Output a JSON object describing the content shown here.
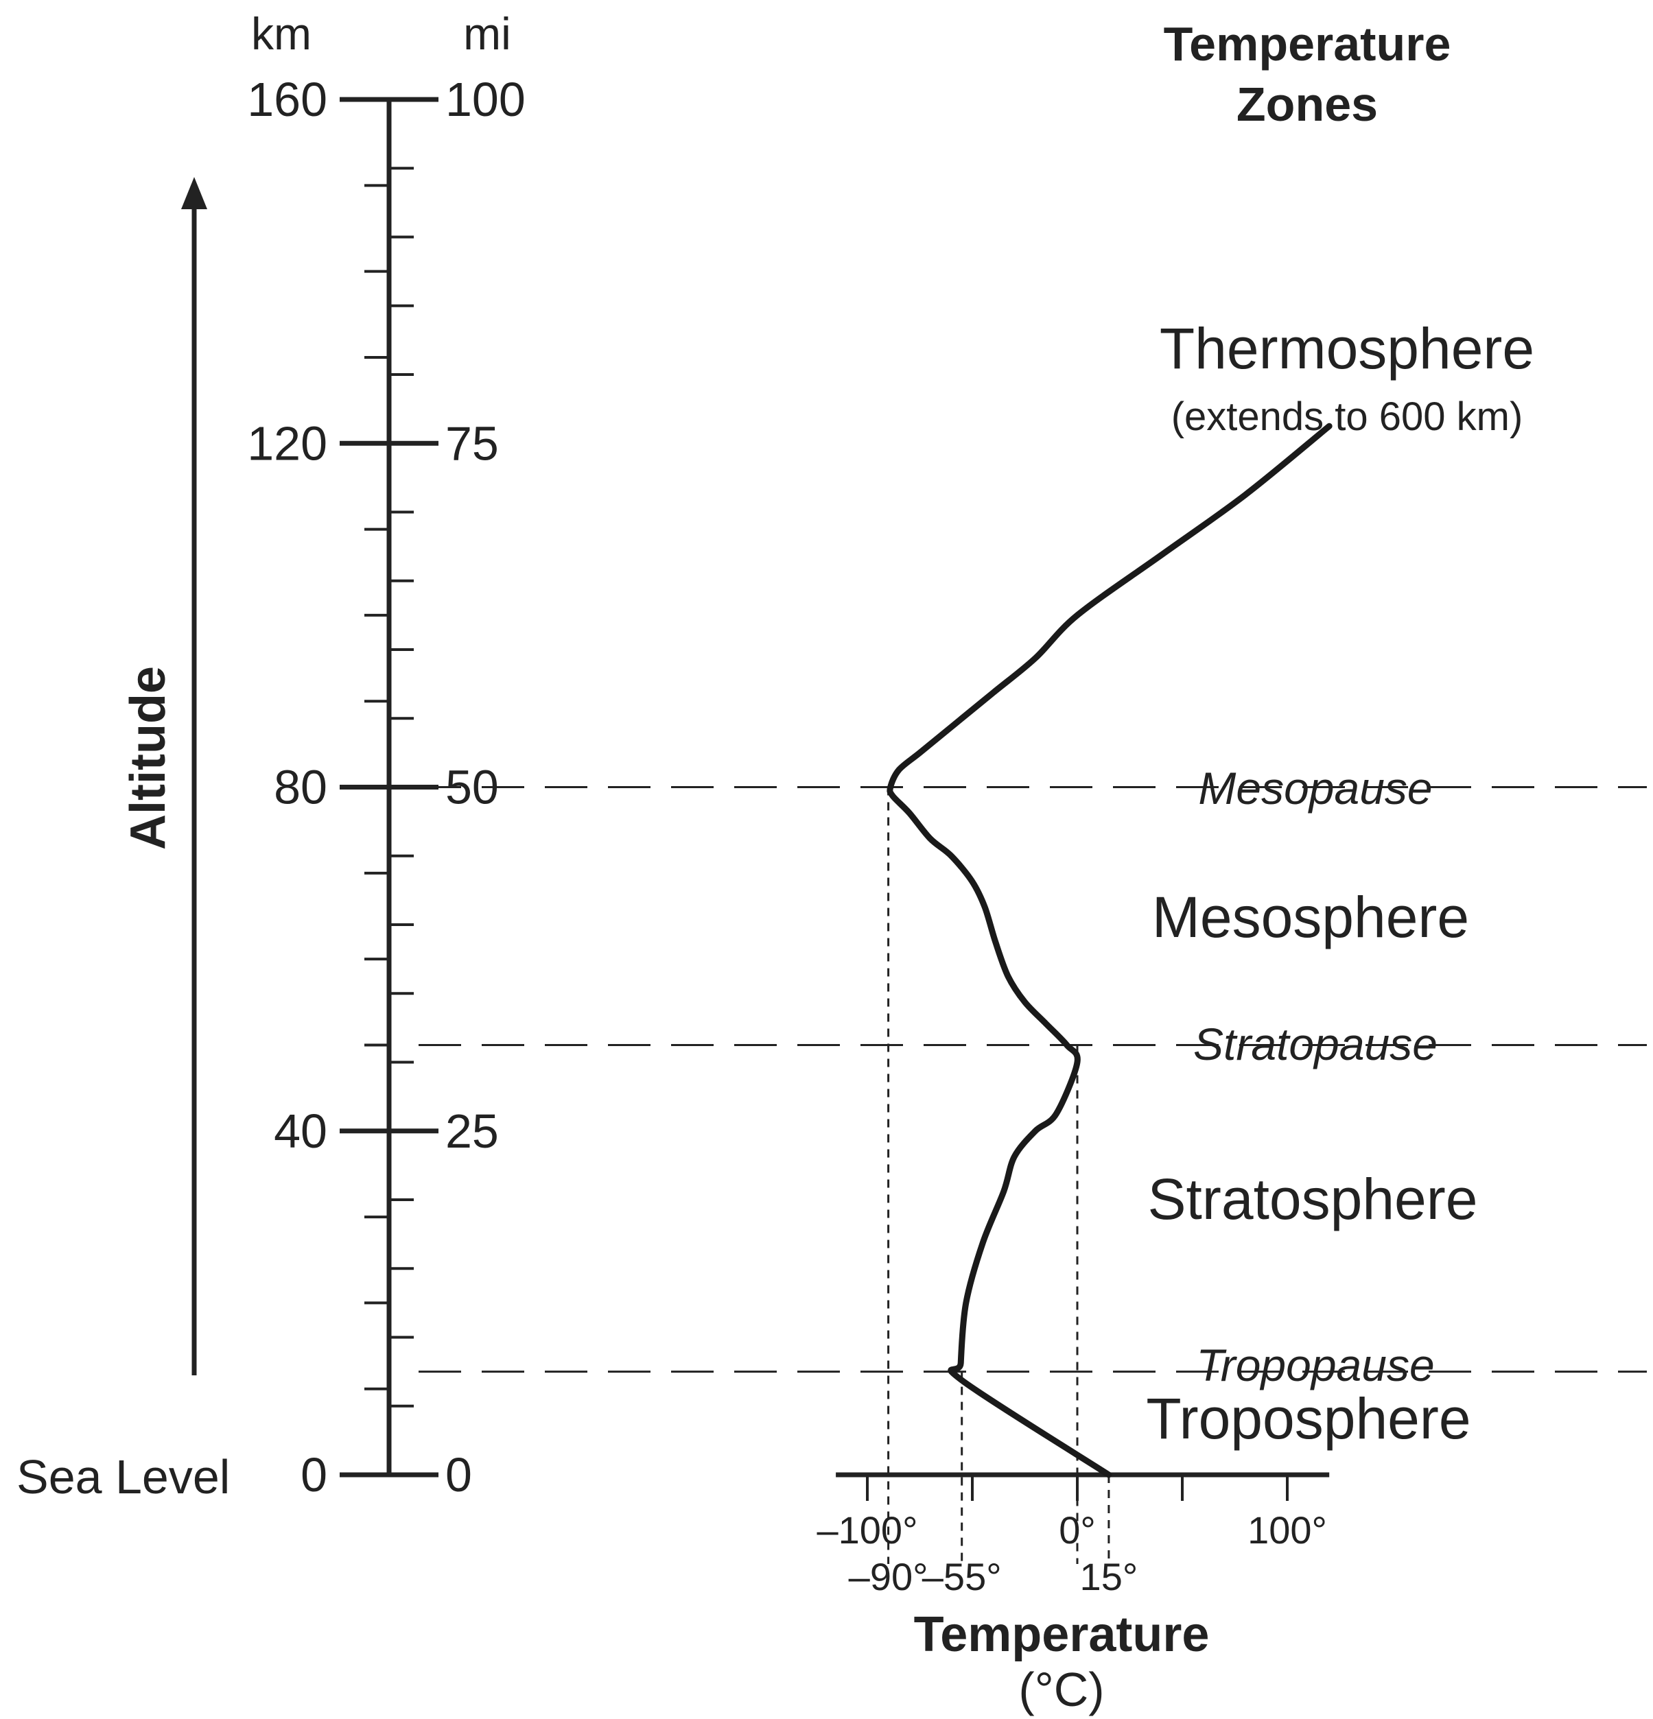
{
  "chart_data": {
    "type": "line",
    "title": "Temperature Zones",
    "title_lines": [
      "Temperature",
      "Zones"
    ],
    "xlabel": "Temperature",
    "xlabel_unit": "(°C)",
    "ylabel": "Altitude",
    "y_units": {
      "left": "km",
      "right": "mi"
    },
    "sea_level_label": "Sea Level",
    "xlim": [
      -115,
      120
    ],
    "ylim": [
      0,
      160
    ],
    "x_major_ticks": [
      -100,
      -50,
      0,
      50,
      100
    ],
    "x_tick_labels": [
      {
        "value": -100,
        "label": "–100°"
      },
      {
        "value": 0,
        "label": "0°"
      },
      {
        "value": 100,
        "label": "100°"
      }
    ],
    "x_marker_labels": [
      {
        "value": -90,
        "label": "–90°"
      },
      {
        "value": -55,
        "label": "–55°"
      },
      {
        "value": 15,
        "label": "15°"
      }
    ],
    "y_km_ticks": [
      {
        "value": 0,
        "label": "0"
      },
      {
        "value": 40,
        "label": "40"
      },
      {
        "value": 80,
        "label": "80"
      },
      {
        "value": 120,
        "label": "120"
      },
      {
        "value": 160,
        "label": "160"
      }
    ],
    "y_mi_ticks": [
      {
        "value": 0,
        "label": "0"
      },
      {
        "value": 25,
        "label": "25"
      },
      {
        "value": 50,
        "label": "50"
      },
      {
        "value": 75,
        "label": "75"
      },
      {
        "value": 100,
        "label": "100"
      }
    ],
    "km_per_mile": 1.6,
    "series": [
      {
        "x": [
          15,
          -55,
          -55.5,
          -53,
          -45,
          -35,
          -30,
          -20,
          -10,
          0,
          -5,
          -15,
          -25,
          -33,
          -39,
          -44,
          -50,
          -60,
          -70,
          -80,
          -88,
          -89,
          -85,
          -75,
          -60,
          -40,
          -20,
          0,
          40,
          80,
          120
        ],
        "y": [
          0,
          11,
          13,
          20,
          27,
          33,
          37,
          40,
          42,
          48,
          50,
          52.5,
          55,
          58,
          62,
          66,
          69,
          72,
          74,
          77,
          79,
          80,
          82,
          84,
          87,
          91,
          95,
          100,
          107,
          114,
          122
        ]
      }
    ],
    "boundaries": [
      {
        "label": "Tropopause",
        "altitude_km": 12,
        "temperature": -55
      },
      {
        "label": "Stratopause",
        "altitude_km": 50,
        "temperature": 0
      },
      {
        "label": "Mesopause",
        "altitude_km": 80,
        "temperature": -90
      }
    ],
    "zones": [
      {
        "label": "Troposphere",
        "note": ""
      },
      {
        "label": "Stratosphere",
        "note": ""
      },
      {
        "label": "Mesosphere",
        "note": ""
      },
      {
        "label": "Thermosphere",
        "note": "(extends to 600 km)"
      }
    ],
    "grid": false,
    "legend": "none"
  }
}
